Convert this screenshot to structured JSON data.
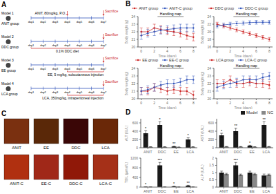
{
  "chart_data": [
    {
      "type": "timeline",
      "title": "A",
      "categories": [
        "day1",
        "day2",
        "day3",
        "day4",
        "day5",
        "day6",
        "day7"
      ],
      "color": "#3355bb",
      "annotations": [
        {
          "text": "Sacrifice",
          "at": "day7",
          "color": "#cc2222"
        }
      ],
      "rows": [
        {
          "name": "Model 1",
          "label": "ANIT group",
          "treatment": {
            "text": "ANIT, 80mg/kg, P.O.",
            "from": "day4",
            "to": "day4",
            "color": "#cc2222"
          }
        },
        {
          "name": "Model 2",
          "label": "DDC group",
          "treatment": {
            "text": "0.1% DDC diet",
            "from": "day1",
            "to": "day7",
            "color": "#cc2222"
          }
        },
        {
          "name": "Model 3",
          "label": "EE group",
          "treatment": {
            "text": "EE, 5 mg/kg, subcutaneous injection",
            "from": "day4",
            "to": "day7",
            "color": "#cc2222"
          }
        },
        {
          "name": "Model 4",
          "label": "LCA group",
          "treatment": {
            "text": "LCA, 350mg/kg, intraperitoneal injection",
            "from": "day4",
            "to": "day7",
            "color": "#cc2222"
          }
        }
      ]
    },
    {
      "type": "line",
      "title": "B",
      "charts": [
        {
          "type": "line",
          "xlabel": "Time (days)",
          "ylabel": "Body weight (g)",
          "x": [
            0,
            1,
            2,
            3,
            4,
            5,
            6,
            7,
            8
          ],
          "xlim": [
            -0.5,
            8.5
          ],
          "xticks": [
            0,
            2,
            4,
            6,
            8
          ],
          "ylim": [
            20,
            24
          ],
          "yticks": [
            20,
            21,
            22,
            23,
            24
          ],
          "error": 0.5,
          "legend": "top",
          "annotations": [
            {
              "text": "Handling map",
              "x": [
                2.5,
                6.5
              ]
            }
          ],
          "series": [
            {
              "name": "ANIT group",
              "color": "#cc2222",
              "marker": "circle",
              "values": [
                22.0,
                22.0,
                22.5,
                22.3,
                22.1,
                22.0,
                21.8,
                21.5,
                21.3
              ]
            },
            {
              "name": "ANIT-C group",
              "color": "#3355bb",
              "marker": "circle",
              "values": [
                21.5,
                21.8,
                22.0,
                22.2,
                22.3,
                22.4,
                22.5,
                22.5,
                22.5
              ]
            }
          ]
        },
        {
          "type": "line",
          "xlabel": "Time (days)",
          "ylabel": "Body weight (g)",
          "x": [
            0,
            1,
            2,
            3,
            4,
            5,
            6,
            7,
            8
          ],
          "xlim": [
            -0.5,
            8.5
          ],
          "xticks": [
            0,
            2,
            4,
            6,
            8
          ],
          "ylim": [
            16,
            24
          ],
          "yticks": [
            16,
            18,
            20,
            22,
            24
          ],
          "error": 0.5,
          "legend": "top",
          "annotations": [
            {
              "text": "Handling map",
              "x": [
                2.5,
                6.5
              ]
            }
          ],
          "series": [
            {
              "name": "DDC group",
              "color": "#cc2222",
              "marker": "circle",
              "values": [
                22.0,
                21.5,
                21.0,
                20.5,
                20.0,
                19.5,
                19.0,
                18.5,
                18.0
              ]
            },
            {
              "name": "DDC-C group",
              "color": "#3355bb",
              "marker": "circle",
              "values": [
                21.5,
                21.8,
                22.0,
                22.2,
                22.3,
                22.4,
                22.5,
                22.5,
                22.5
              ]
            }
          ]
        },
        {
          "type": "line",
          "xlabel": "Time (days)",
          "ylabel": "Body weight (g)",
          "x": [
            0,
            1,
            2,
            3,
            4,
            5,
            6,
            7,
            8
          ],
          "xlim": [
            -0.5,
            8.5
          ],
          "xticks": [
            0,
            2,
            4,
            6,
            8
          ],
          "ylim": [
            20,
            24
          ],
          "yticks": [
            20,
            21,
            22,
            23,
            24
          ],
          "error": 0.5,
          "legend": "top",
          "annotations": [
            {
              "text": "Handling map",
              "x": [
                2.5,
                6.5
              ]
            }
          ],
          "series": [
            {
              "name": "EE group",
              "color": "#cc2222",
              "marker": "circle",
              "values": [
                21.0,
                21.0,
                21.5,
                21.3,
                21.0,
                21.2,
                21.0,
                21.0,
                20.5
              ]
            },
            {
              "name": "EE-C group",
              "color": "#3355bb",
              "marker": "circle",
              "values": [
                21.0,
                21.2,
                21.5,
                21.8,
                22.0,
                22.0,
                22.2,
                22.5,
                22.5
              ]
            }
          ]
        },
        {
          "type": "line",
          "xlabel": "Time (days)",
          "ylabel": "Body weight (g)",
          "x": [
            0,
            1,
            2,
            3,
            4,
            5,
            6,
            7,
            8
          ],
          "xlim": [
            -0.5,
            8.5
          ],
          "xticks": [
            0,
            2,
            4,
            6,
            8
          ],
          "ylim": [
            20,
            24
          ],
          "yticks": [
            20,
            21,
            22,
            23,
            24
          ],
          "error": 0.5,
          "legend": "top",
          "annotations": [
            {
              "text": "Handling map",
              "x": [
                2.5,
                6.5
              ]
            }
          ],
          "series": [
            {
              "name": "LCA group",
              "color": "#cc2222",
              "marker": "circle",
              "values": [
                22.0,
                22.0,
                22.5,
                22.0,
                22.0,
                22.2,
                22.0,
                22.0,
                21.8
              ]
            },
            {
              "name": "LCA-C group",
              "color": "#3355bb",
              "marker": "circle",
              "values": [
                21.5,
                21.8,
                22.0,
                22.2,
                22.5,
                22.5,
                22.5,
                22.8,
                23.0
              ]
            }
          ]
        }
      ]
    },
    {
      "type": "swatches",
      "title": "C",
      "categories": [
        "ANIT",
        "EE",
        "DDC",
        "LCA",
        "ANIT-C",
        "EE-C",
        "DDC-C",
        "LCA-C"
      ],
      "colors": [
        "#7a3010",
        "#5a2808",
        "#3a0606",
        "#6a2808",
        "#b03010",
        "#a02818",
        "#901808",
        "#a53018"
      ]
    },
    {
      "type": "bar",
      "title": "D",
      "legend": "upper right",
      "series": [
        {
          "name": "Model",
          "color": "#1a1a1a"
        },
        {
          "name": "NC",
          "color": "#888888"
        }
      ],
      "charts": [
        {
          "type": "bar",
          "ylabel": "ALT (IU/L)",
          "categories": [
            "ANIT",
            "DDC",
            "EE",
            "LCA"
          ],
          "ylim": [
            0,
            700
          ],
          "yticks": [
            0,
            200,
            400,
            600
          ],
          "series": [
            {
              "values": [
                350,
                550,
                30,
                200
              ],
              "error": [
                60,
                80,
                8,
                40
              ],
              "annotations": [
                "*",
                "*",
                "**",
                "*"
              ]
            },
            {
              "values": [
                20,
                20,
                15,
                20
              ],
              "error": [
                5,
                5,
                4,
                5
              ]
            }
          ]
        },
        {
          "type": "bar",
          "ylabel": "AST (IU/L)",
          "categories": [
            "ANIT",
            "DDC",
            "EE",
            "LCA"
          ],
          "ylim": [
            0,
            700
          ],
          "yticks": [
            0,
            200,
            400,
            600
          ],
          "series": [
            {
              "values": [
                300,
                400,
                50,
                550
              ],
              "error": [
                50,
                70,
                10,
                80
              ],
              "annotations": [
                "*",
                "**",
                "*",
                "**"
              ]
            },
            {
              "values": [
                25,
                25,
                20,
                25
              ],
              "error": [
                5,
                5,
                5,
                5
              ]
            }
          ]
        },
        {
          "type": "bar",
          "ylabel": "TBIL (μmol/L)",
          "categories": [
            "ANIT",
            "DDC",
            "EE",
            "LCA"
          ],
          "ylim": [
            0,
            1200
          ],
          "yticks": [
            0,
            400,
            800,
            1200
          ],
          "series": [
            {
              "values": [
                10,
                900,
                30,
                60
              ],
              "error": [
                2,
                120,
                8,
                15
              ],
              "annotations": [
                "*",
                "***",
                "*",
                "**"
              ]
            },
            {
              "values": [
                8,
                8,
                6,
                8
              ],
              "error": [
                2,
                2,
                1,
                2
              ]
            }
          ]
        },
        {
          "type": "bar",
          "ylabel": "ALP (IU/L)",
          "categories": [
            "ANIT",
            "DDC",
            "EE",
            "LCA"
          ],
          "ylim": [
            0,
            2.0
          ],
          "yticks": [
            0,
            0.5,
            1,
            1.5,
            2
          ],
          "series": [
            {
              "values": [
                1.0,
                1.5,
                1.0,
                0.8
              ],
              "error": [
                0.1,
                0.2,
                0.1,
                0.1
              ],
              "annotations": [
                null,
                "***",
                null,
                null
              ]
            },
            {
              "values": [
                0.9,
                0.85,
                0.9,
                0.85
              ],
              "error": [
                0.05,
                0.05,
                0.05,
                0.05
              ]
            }
          ]
        }
      ]
    }
  ]
}
